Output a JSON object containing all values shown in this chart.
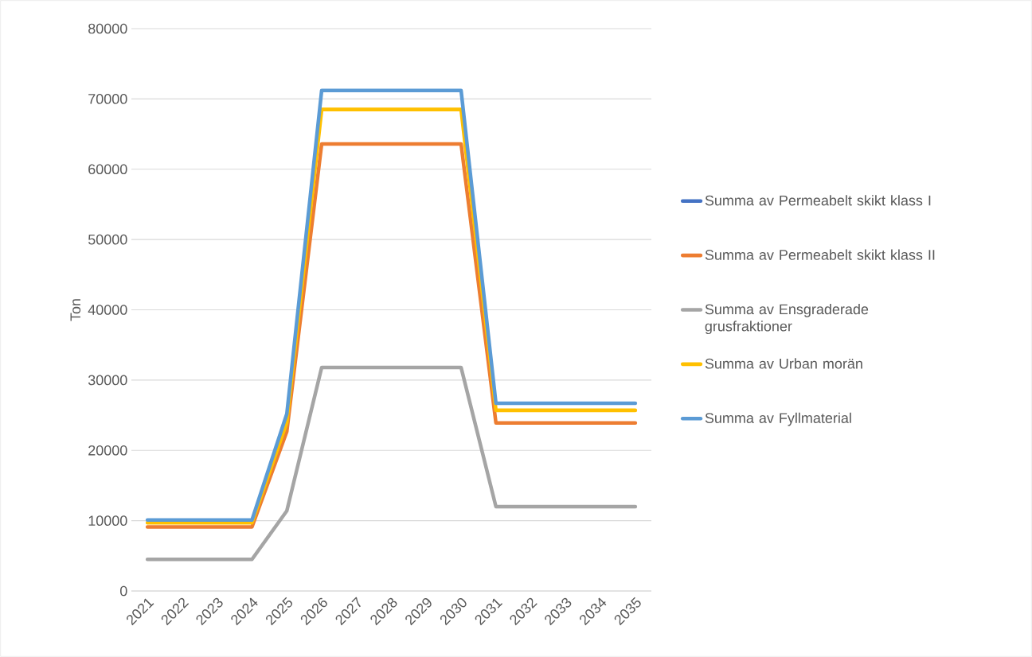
{
  "chart_data": {
    "type": "line",
    "ylabel": "Ton",
    "categories": [
      "2021",
      "2022",
      "2023",
      "2024",
      "2025",
      "2026",
      "2027",
      "2028",
      "2029",
      "2030",
      "2031",
      "2032",
      "2033",
      "2034",
      "2035"
    ],
    "series": [
      {
        "name": "Summa av  Permeabelt skikt klass I",
        "color": "#4472c4",
        "values": [
          null,
          null,
          null,
          null,
          null,
          null,
          null,
          null,
          null,
          null,
          null,
          null,
          null,
          null,
          null
        ]
      },
      {
        "name": "Summa av  Permeabelt skikt klass II",
        "color": "#ed7d31",
        "values": [
          9100,
          9100,
          9100,
          9100,
          22700,
          63600,
          63600,
          63600,
          63600,
          63600,
          23900,
          23900,
          23900,
          23900,
          23900
        ]
      },
      {
        "name": "Summa av  Ensgraderade grusfraktioner",
        "color": "#a5a5a5",
        "values": [
          4500,
          4500,
          4500,
          4500,
          11400,
          31800,
          31800,
          31800,
          31800,
          31800,
          12000,
          12000,
          12000,
          12000,
          12000
        ]
      },
      {
        "name": "Summa av  Urban morän",
        "color": "#ffc000",
        "values": [
          9700,
          9700,
          9700,
          9700,
          24000,
          68500,
          68500,
          68500,
          68500,
          68500,
          25700,
          25700,
          25700,
          25700,
          25700
        ]
      },
      {
        "name": "Summa av  Fyllmaterial",
        "color": "#5b9bd5",
        "values": [
          10100,
          10100,
          10100,
          10100,
          25200,
          71200,
          71200,
          71200,
          71200,
          71200,
          26700,
          26700,
          26700,
          26700,
          26700
        ]
      }
    ],
    "ylim": [
      0,
      80000
    ],
    "yticks": [
      0,
      10000,
      20000,
      30000,
      40000,
      50000,
      60000,
      70000,
      80000
    ],
    "grid": "y",
    "legend": "right"
  }
}
